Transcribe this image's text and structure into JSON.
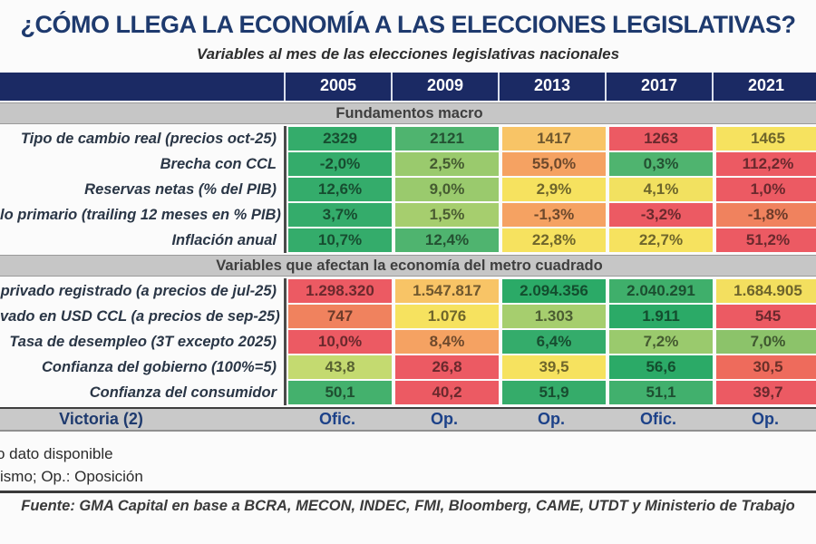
{
  "title": "¿CÓMO LLEGA LA ECONOMÍA A LAS ELECCIONES LEGISLATIVAS?",
  "subtitle": "Variables al mes de las elecciones legislativas nacionales",
  "chart_data": {
    "type": "table",
    "columns": [
      "2005",
      "2009",
      "2013",
      "2017",
      "2021"
    ],
    "sections": [
      {
        "header": "Fundamentos macro",
        "rows": [
          {
            "label": "Tipo de cambio real (precios oct-25)",
            "values": [
              "2329",
              "2121",
              "1417",
              "1263",
              "1465"
            ],
            "colors": [
              "#34AC6B",
              "#4FB46F",
              "#F8C466",
              "#EC5A63",
              "#F6E25F"
            ]
          },
          {
            "label": "Brecha con CCL",
            "values": [
              "-2,0%",
              "2,5%",
              "55,0%",
              "0,3%",
              "112,2%"
            ],
            "colors": [
              "#34AC6B",
              "#9ACA6D",
              "#F5A262",
              "#4FB46F",
              "#EC5A63"
            ]
          },
          {
            "label": "Reservas netas (% del PIB)",
            "values": [
              "12,6%",
              "9,0%",
              "2,9%",
              "4,1%",
              "1,0%"
            ],
            "colors": [
              "#34AC6B",
              "#9ACA6D",
              "#F6E25F",
              "#F2E160",
              "#EC5A63"
            ]
          },
          {
            "label": "lo primario (trailing 12 meses en % PIB)",
            "values": [
              "3,7%",
              "1,5%",
              "-1,3%",
              "-3,2%",
              "-1,8%"
            ],
            "colors": [
              "#34AC6B",
              "#A6CE6E",
              "#F5A262",
              "#EC5A63",
              "#F0825E"
            ]
          },
          {
            "label": "Inflación anual",
            "values": [
              "10,7%",
              "12,4%",
              "22,8%",
              "22,7%",
              "51,2%"
            ],
            "colors": [
              "#34AC6B",
              "#4FB46F",
              "#F6E25F",
              "#F6E25F",
              "#EC5A63"
            ]
          }
        ]
      },
      {
        "header": "Variables que afectan la economía del metro cuadrado",
        "rows": [
          {
            "label": "privado registrado (a precios de jul-25)",
            "values": [
              "1.298.320",
              "1.547.817",
              "2.094.356",
              "2.040.291",
              "1.684.905"
            ],
            "colors": [
              "#EC5A63",
              "#F8C466",
              "#2BAA67",
              "#3FAF6B",
              "#F3DF5F"
            ]
          },
          {
            "label": "vado en USD CCL (a precios de sep-25)",
            "values": [
              "747",
              "1.076",
              "1.303",
              "1.911",
              "545"
            ],
            "colors": [
              "#F0825E",
              "#F6E25F",
              "#A6CE6E",
              "#2BAA67",
              "#EC5A63"
            ]
          },
          {
            "label": "Tasa de desempleo (3T excepto 2025)",
            "values": [
              "10,0%",
              "8,4%",
              "6,4%",
              "7,2%",
              "7,0%"
            ],
            "colors": [
              "#EC5A63",
              "#F5A262",
              "#34AC6B",
              "#9ACA6D",
              "#8CC36A"
            ]
          },
          {
            "label": "Confianza del gobierno (100%=5)",
            "values": [
              "43,8",
              "26,8",
              "39,5",
              "56,6",
              "30,5"
            ],
            "colors": [
              "#C4DA70",
              "#EC5A63",
              "#F6E25F",
              "#2BAA67",
              "#EE6B5C"
            ]
          },
          {
            "label": "Confianza del consumidor",
            "values": [
              "50,1",
              "40,2",
              "51,9",
              "51,1",
              "39,7"
            ],
            "colors": [
              "#44B16D",
              "#EC5A63",
              "#35AC6A",
              "#41B06D",
              "#EC5A63"
            ]
          }
        ]
      }
    ],
    "victory_row": {
      "label": "Victoria (2)",
      "values": [
        "Ofic.",
        "Op.",
        "Op.",
        "Ofic.",
        "Op."
      ]
    }
  },
  "footnotes": [
    "o dato disponible",
    "ismo; Op.: Oposición"
  ],
  "source": "Fuente: GMA Capital en base a BCRA, MECON, INDEC, FMI, Bloomberg, CAME, UTDT y Ministerio de Trabajo",
  "colors": {
    "title_navy": "#1E3A6E",
    "header_navy": "#1B2A64",
    "section_bar_gray": "#C6C6C6",
    "victory_bar_gray": "#C9C9C9",
    "scale_green": "#34AC6B",
    "scale_yellow": "#F6E25F",
    "scale_red": "#EC5A63"
  }
}
